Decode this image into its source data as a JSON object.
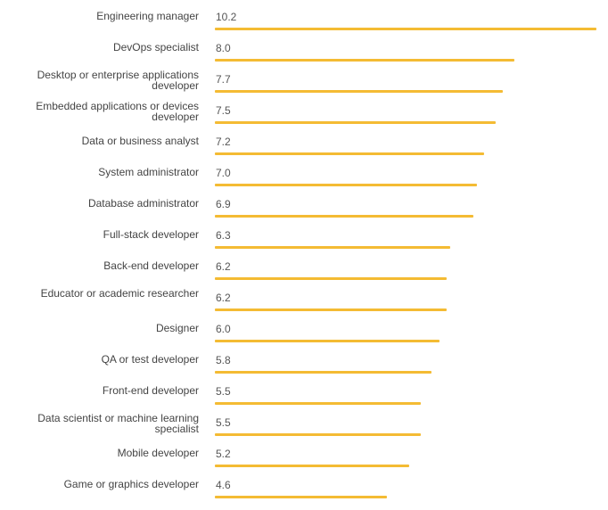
{
  "chart_data": {
    "type": "bar",
    "orientation": "horizontal",
    "title": "",
    "xlabel": "",
    "ylabel": "",
    "bar_color": "#F4BB33",
    "xlim": [
      0,
      10.2
    ],
    "categories": [
      "Engineering manager",
      "DevOps specialist",
      "Desktop or enterprise applications developer",
      "Embedded applications or devices developer",
      "Data or business analyst",
      "System administrator",
      "Database administrator",
      "Full-stack developer",
      "Back-end developer",
      "Educator or academic researcher",
      "Designer",
      "QA or test developer",
      "Front-end developer",
      "Data scientist or machine learning specialist",
      "Mobile developer",
      "Game or graphics developer"
    ],
    "values": [
      10.2,
      8.0,
      7.7,
      7.5,
      7.2,
      7.0,
      6.9,
      6.3,
      6.2,
      6.2,
      6.0,
      5.8,
      5.5,
      5.5,
      5.2,
      4.6
    ],
    "value_labels": [
      "10.2",
      "8.0",
      "7.7",
      "7.5",
      "7.2",
      "7.0",
      "6.9",
      "6.3",
      "6.2",
      "6.2",
      "6.0",
      "5.8",
      "5.5",
      "5.5",
      "5.2",
      "4.6"
    ]
  }
}
